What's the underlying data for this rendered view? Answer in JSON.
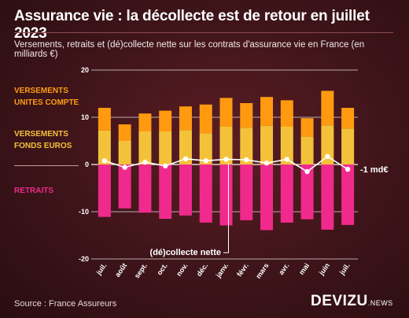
{
  "title": "Assurance vie : la décollecte est de retour en juillet 2023",
  "subtitle": "Versements, retraits et (dé)collecte nette sur les contrats d'assurance vie en France (en milliards €)",
  "legend": {
    "uc": "VERSEMENTS\nUNITES COMPTE",
    "fe": "VERSEMENTS\nFONDS EUROS",
    "re": "RETRAITS"
  },
  "annotations": {
    "net_label": "(dé)collecte nette",
    "last_value": "-1 md€"
  },
  "source": "Source : France Assureurs",
  "brand": {
    "main": "DEVIZU",
    "sub": ".NEWS"
  },
  "colors": {
    "uc": "#ff9a10",
    "fe": "#f4c23a",
    "retraits": "#f02a8c",
    "net": "#ffffff",
    "grid": "#ffffff"
  },
  "chart_data": {
    "type": "bar",
    "stacked": true,
    "categories": [
      "juil.",
      "août",
      "sept.",
      "oct.",
      "nov.",
      "déc.",
      "janv.",
      "févr.",
      "mars",
      "avr.",
      "mai",
      "juin",
      "juil."
    ],
    "series": [
      {
        "key": "fe",
        "values": [
          7.2,
          5.0,
          7.0,
          7.0,
          7.3,
          6.6,
          8.0,
          7.8,
          8.2,
          8.0,
          5.9,
          8.3,
          7.6
        ]
      },
      {
        "key": "uc",
        "values": [
          4.8,
          3.5,
          3.8,
          4.4,
          5.0,
          6.1,
          6.1,
          5.2,
          6.1,
          5.6,
          3.9,
          7.3,
          4.4
        ]
      },
      {
        "key": "retraits",
        "values": [
          -11.1,
          -9.3,
          -10.2,
          -11.5,
          -10.8,
          -12.3,
          -12.9,
          -11.8,
          -13.9,
          -12.3,
          -11.6,
          -13.8,
          -12.8
        ]
      },
      {
        "key": "net",
        "type": "line",
        "values": [
          0.8,
          -0.6,
          0.5,
          -0.3,
          1.2,
          0.8,
          1.1,
          1.0,
          0.3,
          1.1,
          -1.5,
          1.7,
          -1.0
        ]
      }
    ],
    "ylim": [
      -20,
      20
    ],
    "yticks": [
      -20,
      -10,
      0,
      10,
      20
    ],
    "grid": true
  }
}
